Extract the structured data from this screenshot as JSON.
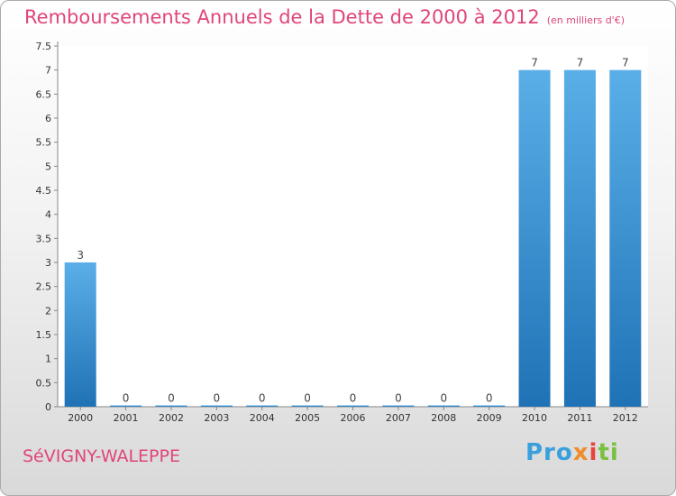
{
  "header": {
    "title": "Remboursements Annuels de la Dette de 2000 à 2012",
    "unit": "(en milliers d'€)"
  },
  "footer": {
    "commune": "SéVIGNY-WALEPPE",
    "logo_text": "Proxiti"
  },
  "colors": {
    "title": "#e0457b",
    "bar_top": "#5aafe8",
    "bar_bottom": "#1f72b5"
  },
  "chart_data": {
    "type": "bar",
    "categories": [
      "2000",
      "2001",
      "2002",
      "2003",
      "2004",
      "2005",
      "2006",
      "2007",
      "2008",
      "2009",
      "2010",
      "2011",
      "2012"
    ],
    "values": [
      3,
      0,
      0,
      0,
      0,
      0,
      0,
      0,
      0,
      0,
      7,
      7,
      7
    ],
    "data_labels": [
      "3",
      "0",
      "0",
      "0",
      "0",
      "0",
      "0",
      "0",
      "0",
      "0",
      "7",
      "7",
      "7"
    ],
    "ylim": [
      0,
      7.5
    ],
    "yticks": [
      "0",
      "0.5",
      "1",
      "1.5",
      "2",
      "2.5",
      "3",
      "3.5",
      "4",
      "4.5",
      "5",
      "5.5",
      "6",
      "6.5",
      "7",
      "7.5"
    ],
    "grid": false,
    "xlabel": "",
    "ylabel": ""
  }
}
